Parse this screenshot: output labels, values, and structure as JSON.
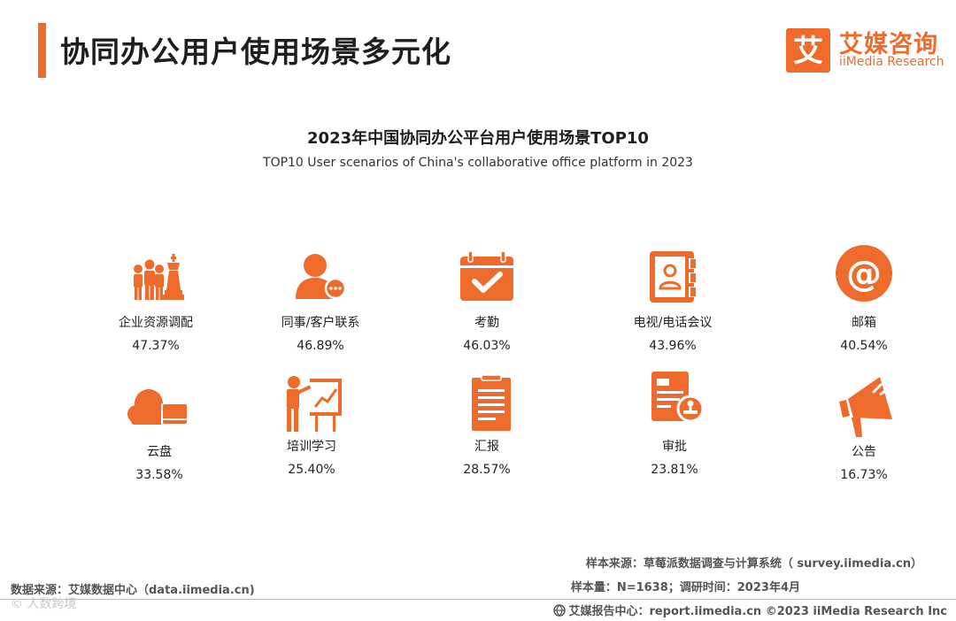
{
  "header": {
    "title": "协同办公用户使用场景多元化",
    "logo_cn": "艾媒咨询",
    "logo_en": "iiMedia Research",
    "logo_mark": "艾"
  },
  "colors": {
    "accent": "#ee6b2b",
    "text": "#222222"
  },
  "chart_data": {
    "type": "icon-grid",
    "title": "2023年中国协同办公平台用户使用场景TOP10",
    "subtitle": "TOP10 User scenarios of China's collaborative office platform in 2023",
    "unit": "%",
    "items": [
      {
        "label": "企业资源调配",
        "value": 47.37,
        "display": "47.37%",
        "icon": "team-chess-icon"
      },
      {
        "label": "同事/客户联系",
        "value": 46.89,
        "display": "46.89%",
        "icon": "contact-chat-icon"
      },
      {
        "label": "考勤",
        "value": 46.03,
        "display": "46.03%",
        "icon": "calendar-check-icon"
      },
      {
        "label": "电视/电话会议",
        "value": 43.96,
        "display": "43.96%",
        "icon": "address-book-icon"
      },
      {
        "label": "邮箱",
        "value": 40.54,
        "display": "40.54%",
        "icon": "at-sign-icon"
      },
      {
        "label": "云盘",
        "value": 33.58,
        "display": "33.58%",
        "icon": "cloud-drive-icon"
      },
      {
        "label": "培训学习",
        "value": 25.4,
        "display": "25.40%",
        "icon": "presentation-icon"
      },
      {
        "label": "汇报",
        "value": 28.57,
        "display": "28.57%",
        "icon": "clipboard-icon"
      },
      {
        "label": "审批",
        "value": 23.81,
        "display": "23.81%",
        "icon": "approval-stamp-icon"
      },
      {
        "label": "公告",
        "value": 16.73,
        "display": "16.73%",
        "icon": "megaphone-icon"
      }
    ]
  },
  "footer": {
    "data_source": "数据来源：艾媒数据中心（data.iimedia.cn)",
    "sample_source": "样本来源：草莓派数据调查与计算系统（ survey.iimedia.cn）",
    "sample_size": "样本量：N=1638；调研时间：2023年4月",
    "copyright": "艾媒报告中心：report.iimedia.cn  ©2023  iiMedia Research  Inc",
    "watermark": "© 人数跨境"
  }
}
